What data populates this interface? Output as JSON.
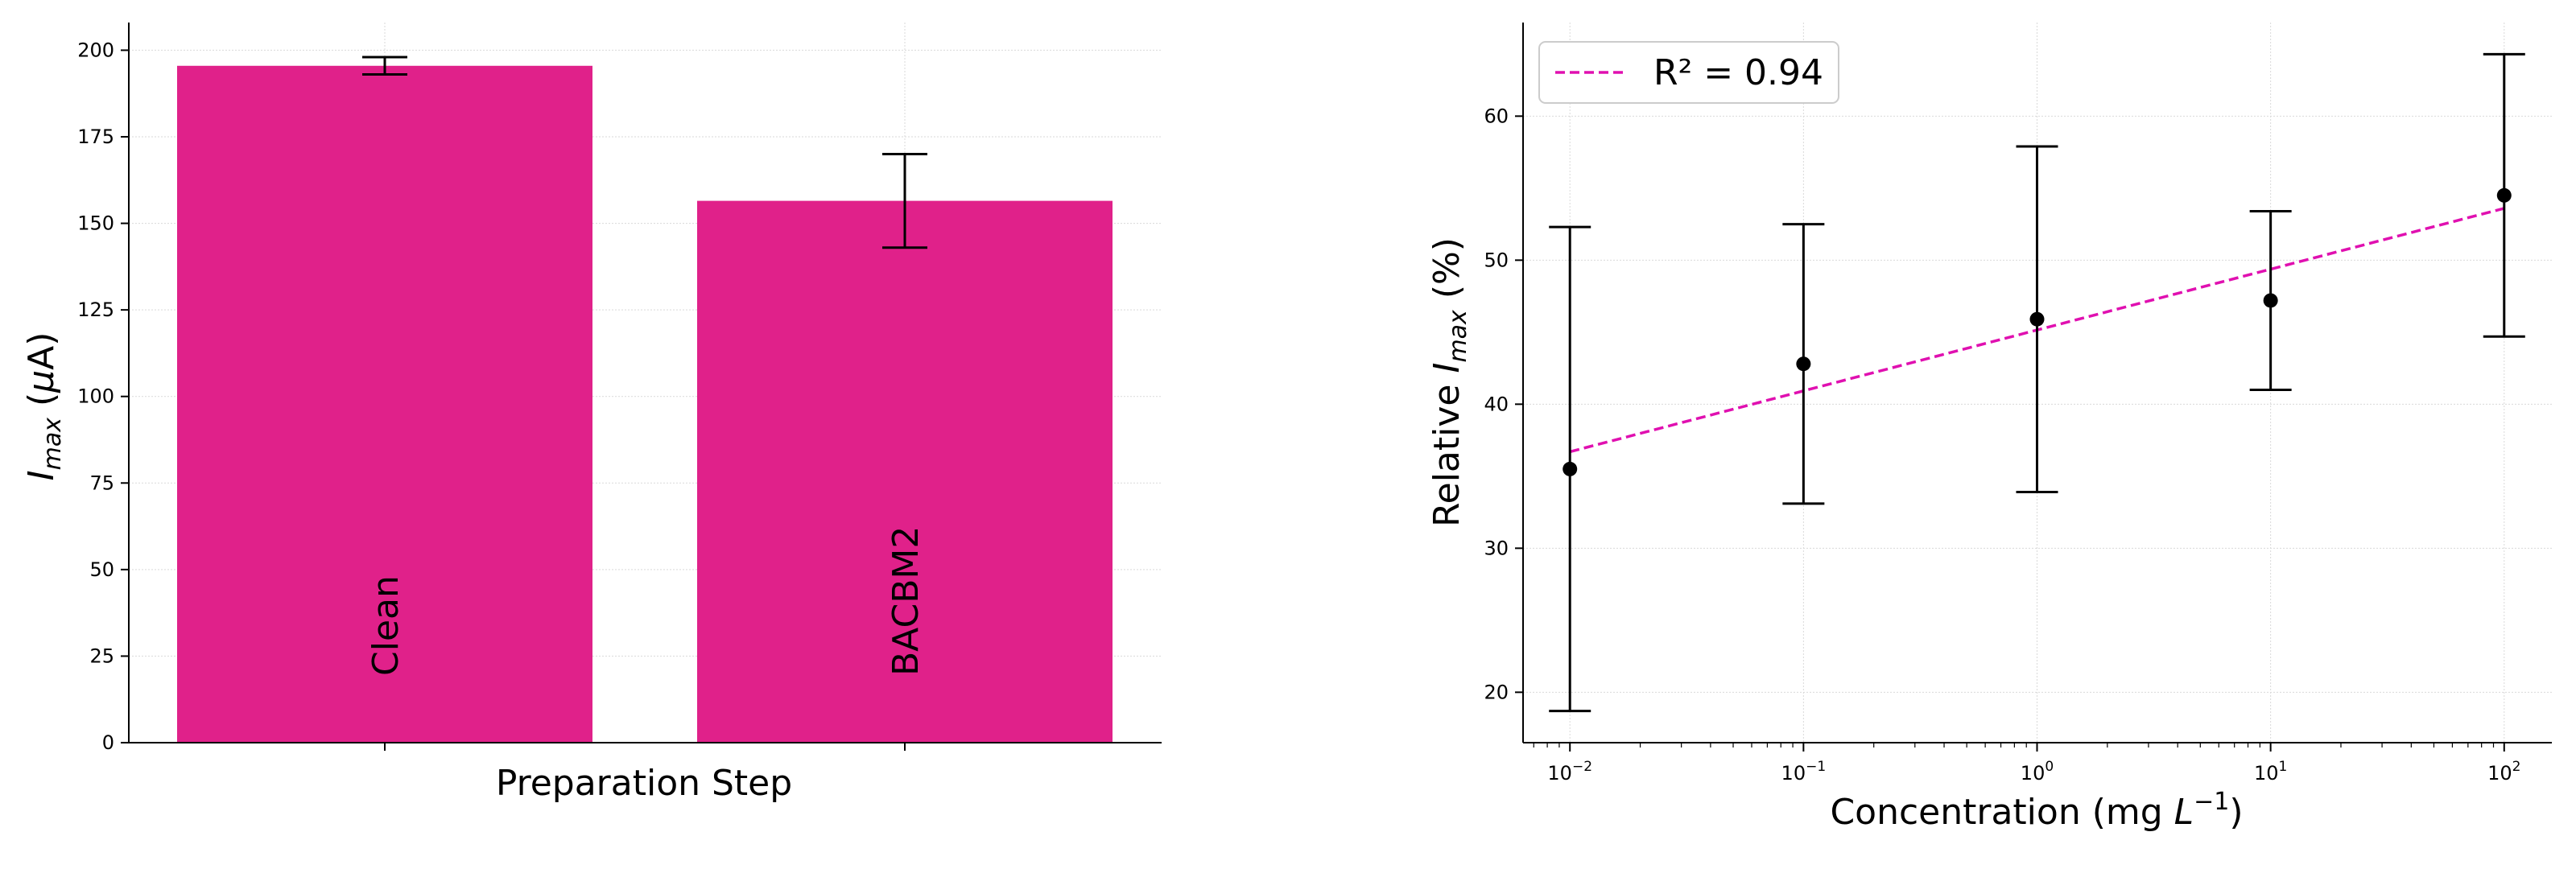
{
  "colors": {
    "bar": "#e0218a",
    "fit": "#e010b0",
    "point": "#000000"
  },
  "chart_data": [
    {
      "type": "bar",
      "categories": [
        "Clean",
        "BACBM2"
      ],
      "values": [
        195.5,
        156.5
      ],
      "errors": [
        2.5,
        13.5
      ],
      "xlabel": "Preparation Step",
      "ylabel_main": "I",
      "ylabel_sub": "max",
      "ylabel_unit_open": " (",
      "ylabel_unit_mu": "μ",
      "ylabel_unit_close": "A)",
      "ylim": [
        0,
        208
      ],
      "yticks": [
        0,
        25,
        50,
        75,
        100,
        125,
        150,
        175,
        200
      ],
      "grid": true
    },
    {
      "type": "scatter",
      "xscale": "log",
      "x": [
        0.01,
        0.1,
        1,
        10,
        100
      ],
      "y": [
        35.5,
        42.8,
        45.9,
        47.2,
        54.5
      ],
      "yerr_low": [
        18.7,
        33.1,
        33.9,
        41.0,
        44.7
      ],
      "yerr_high": [
        52.3,
        52.5,
        57.9,
        53.4,
        64.3
      ],
      "fit": {
        "x": [
          0.01,
          100
        ],
        "y": [
          36.7,
          53.6
        ],
        "style": "dashed",
        "label": "R² = 0.94"
      },
      "xlabel_main": "Concentration (mg ",
      "xlabel_var": "L",
      "xlabel_sup": "−1",
      "xlabel_close": ")",
      "ylabel_pre": "Relative ",
      "ylabel_var": "I",
      "ylabel_sub": "max",
      "ylabel_post": " (%)",
      "xlim": [
        0.0063,
        160
      ],
      "ylim": [
        16.5,
        66.5
      ],
      "yticks": [
        20,
        30,
        40,
        50,
        60
      ],
      "xticks_exp": [
        "−2",
        "−1",
        "0",
        "1",
        "2"
      ],
      "xtick_base": "10",
      "legend_position": "upper-left",
      "grid": true
    }
  ]
}
